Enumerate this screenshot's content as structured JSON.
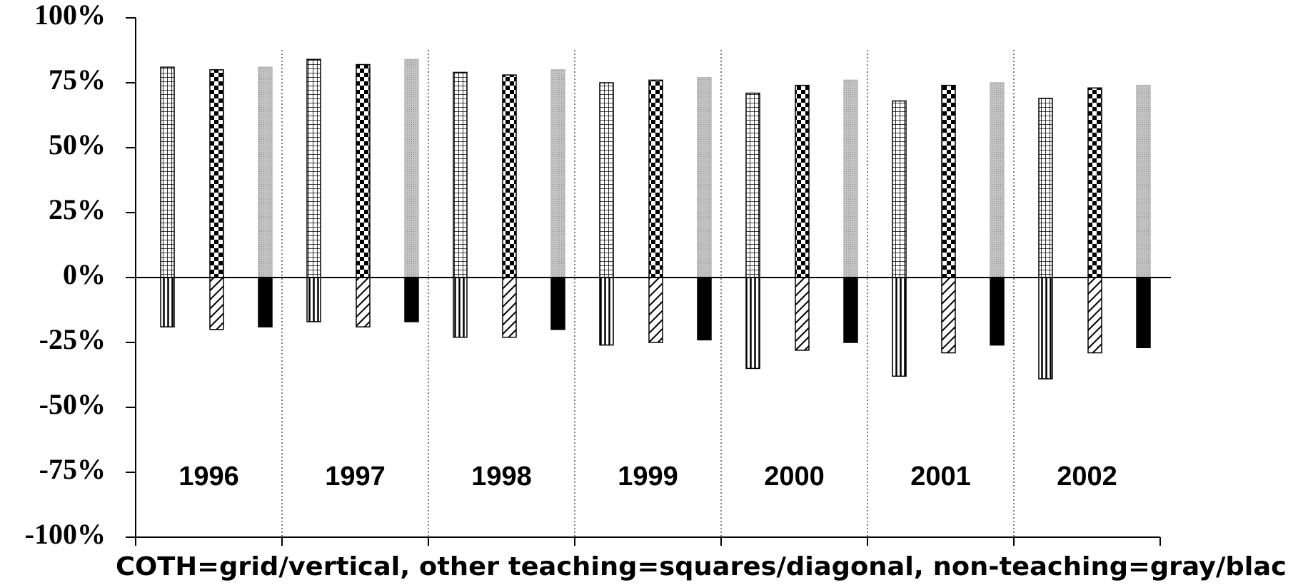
{
  "chart_data": {
    "type": "bar",
    "caption": "COTH=grid/vertical, other teaching=squares/diagonal, non-teaching=gray/blac",
    "categories": [
      "1996",
      "1997",
      "1998",
      "1999",
      "2000",
      "2001",
      "2002"
    ],
    "series": [
      {
        "pattern": "grid",
        "color": "#000000",
        "values": [
          81,
          84,
          79,
          75,
          71,
          68,
          69
        ]
      },
      {
        "pattern": "squares",
        "color": "#000000",
        "values": [
          80,
          82,
          78,
          76,
          74,
          74,
          73
        ]
      },
      {
        "pattern": "gray",
        "color": "#b8b8b8",
        "values": [
          81,
          84,
          80,
          77,
          76,
          75,
          74
        ]
      },
      {
        "pattern": "vertical",
        "color": "#000000",
        "values": [
          -19,
          -17,
          -23,
          -26,
          -35,
          -38,
          -39
        ]
      },
      {
        "pattern": "diagonal",
        "color": "#000000",
        "values": [
          -20,
          -19,
          -23,
          -25,
          -28,
          -29,
          -29
        ]
      },
      {
        "pattern": "solid",
        "color": "#000000",
        "values": [
          -19,
          -17,
          -20,
          -24,
          -25,
          -26,
          -27
        ]
      }
    ],
    "ylim": [
      -100,
      100
    ],
    "yticks": [
      {
        "value": -100,
        "label": "-100%"
      },
      {
        "value": -75,
        "label": "-75%"
      },
      {
        "value": -50,
        "label": "-50%"
      },
      {
        "value": -25,
        "label": "-25%"
      },
      {
        "value": 0,
        "label": "0%"
      },
      {
        "value": 25,
        "label": "25%"
      },
      {
        "value": 50,
        "label": "50%"
      },
      {
        "value": 75,
        "label": "75%"
      },
      {
        "value": 100,
        "label": "100%"
      }
    ]
  }
}
